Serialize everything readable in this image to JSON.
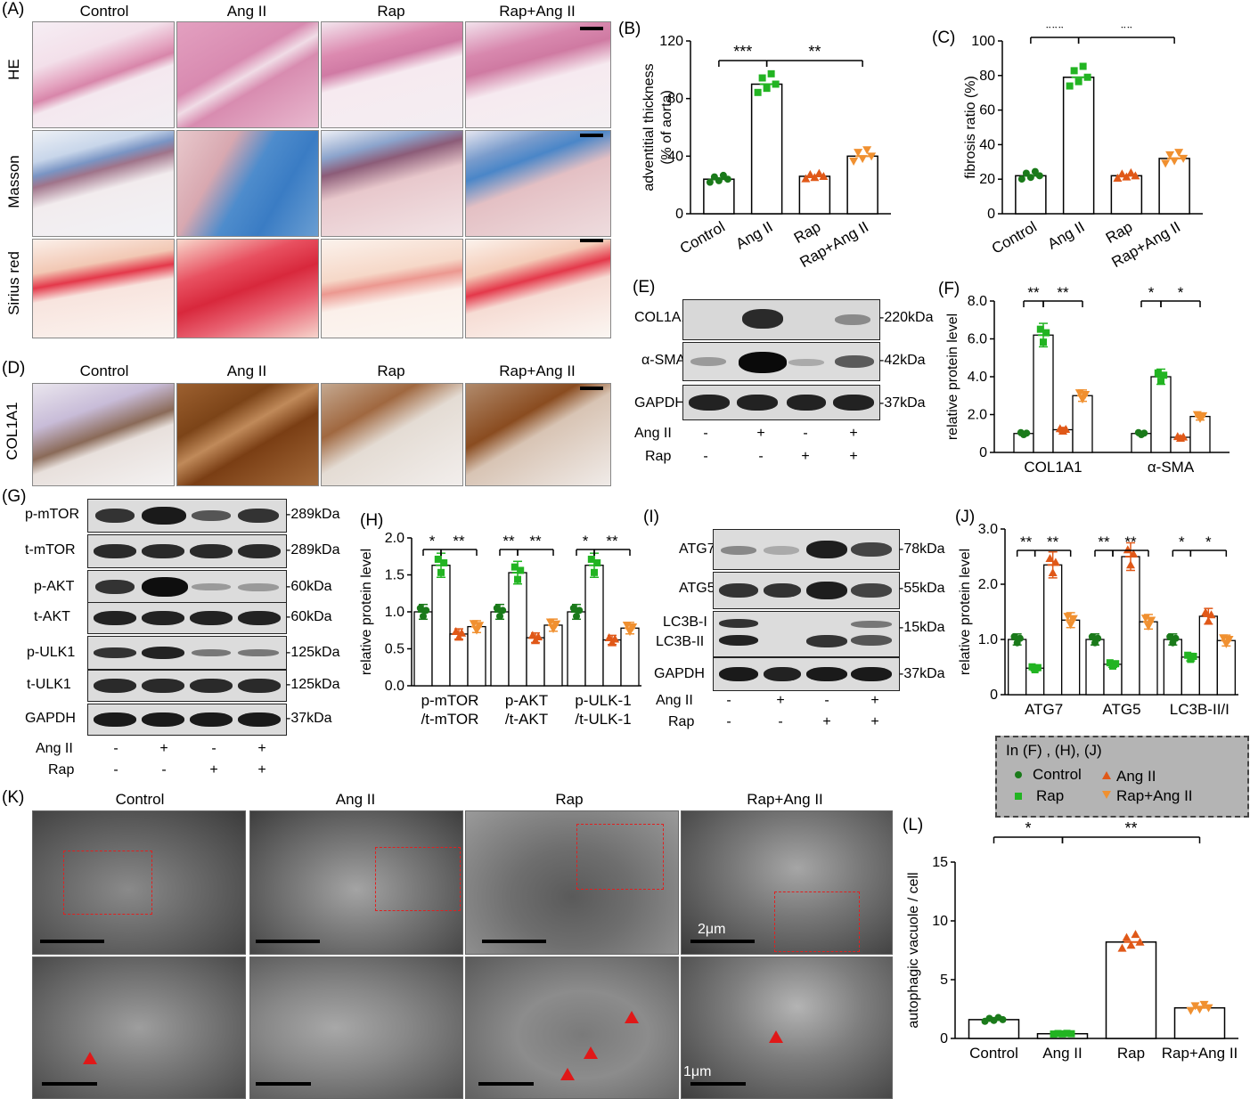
{
  "panels": {
    "a": "(A)",
    "b": "(B)",
    "c": "(C)",
    "d": "(D)",
    "e": "(E)",
    "f": "(F)",
    "g": "(G)",
    "h": "(H)",
    "i": "(I)",
    "j": "(J)",
    "k": "(K)",
    "l": "(L)"
  },
  "groups": [
    "Control",
    "Ang II",
    "Rap",
    "Rap+Ang II"
  ],
  "histo": {
    "rows": [
      "HE",
      "Masson",
      "Sirius red"
    ],
    "d_row": "COL1A1",
    "colors": {
      "he": "#d48aa8",
      "masson": "#5a8cc8",
      "sirius": "#e8485a",
      "ihc": "#9c5a2a"
    }
  },
  "blot_e": {
    "rows": [
      {
        "label": "COL1A1",
        "kda": "-220kDa"
      },
      {
        "label": "α-SMA",
        "kda": "-42kDa"
      },
      {
        "label": "GAPDH",
        "kda": "-37kDa"
      }
    ],
    "treat": [
      {
        "label": "Ang II",
        "signs": [
          "-",
          "+",
          "-",
          "+"
        ]
      },
      {
        "label": "Rap",
        "signs": [
          "-",
          "-",
          "+",
          "+"
        ]
      }
    ]
  },
  "blot_g": {
    "rows": [
      {
        "label": "p-mTOR",
        "kda": "-289kDa"
      },
      {
        "label": "t-mTOR",
        "kda": "-289kDa"
      },
      {
        "label": "p-AKT",
        "kda": "-60kDa"
      },
      {
        "label": "t-AKT",
        "kda": "-60kDa"
      },
      {
        "label": "p-ULK1",
        "kda": "-125kDa"
      },
      {
        "label": "t-ULK1",
        "kda": "-125kDa"
      },
      {
        "label": "GAPDH",
        "kda": "-37kDa"
      }
    ],
    "treat": [
      {
        "label": "Ang II",
        "signs": [
          "-",
          "+",
          "-",
          "+"
        ]
      },
      {
        "label": "Rap",
        "signs": [
          "-",
          "-",
          "+",
          "+"
        ]
      }
    ]
  },
  "blot_i": {
    "rows": [
      {
        "label": "ATG7",
        "kda": "-78kDa"
      },
      {
        "label": "ATG5",
        "kda": "-55kDa"
      },
      {
        "label": "LC3B-I",
        "kda": "-15kDa"
      },
      {
        "label": "LC3B-II",
        "kda": ""
      },
      {
        "label": "GAPDH",
        "kda": "-37kDa"
      }
    ],
    "treat": [
      {
        "label": "Ang II",
        "signs": [
          "-",
          "+",
          "-",
          "+"
        ]
      },
      {
        "label": "Rap",
        "signs": [
          "-",
          "-",
          "+",
          "+"
        ]
      }
    ]
  },
  "legend": {
    "title": "In (F) , (H), (J)",
    "items": [
      "Control",
      "Rap",
      "Ang II",
      "Rap+Ang II"
    ]
  },
  "tem": {
    "scale_top": "2μm",
    "scale_bottom": "1μm"
  },
  "chart_data": [
    {
      "id": "B",
      "type": "bar",
      "ylabel": "adventitial thickness (% of aorta)",
      "ylim": [
        0,
        120
      ],
      "yticks": [
        0,
        40,
        80,
        120
      ],
      "categories": [
        "Control",
        "Ang II",
        "Rap",
        "Rap+Ang II"
      ],
      "values": [
        24,
        90,
        26,
        40
      ],
      "sig": [
        {
          "from": 0,
          "to": 1,
          "label": "***"
        },
        {
          "from": 1,
          "to": 3,
          "label": "**"
        }
      ]
    },
    {
      "id": "C",
      "type": "bar",
      "ylabel": "fibrosis ratio (%)",
      "ylim": [
        0,
        100
      ],
      "yticks": [
        0,
        20,
        40,
        60,
        80,
        100
      ],
      "categories": [
        "Control",
        "Ang II",
        "Rap",
        "Rap+Ang II"
      ],
      "values": [
        22,
        79,
        22,
        32
      ],
      "sig": [
        {
          "from": 0,
          "to": 1,
          "label": "***"
        },
        {
          "from": 1,
          "to": 3,
          "label": "**"
        }
      ]
    },
    {
      "id": "F",
      "type": "bar",
      "ylabel": "relative protein level",
      "ylim": [
        0,
        8.0
      ],
      "yticks": [
        "0",
        "2.0",
        "4.0",
        "6.0",
        "8.0"
      ],
      "categories": [
        "COL1A1",
        "α-SMA"
      ],
      "series": [
        {
          "name": "Control",
          "values": [
            1.0,
            1.0
          ]
        },
        {
          "name": "Ang II",
          "values": [
            6.2,
            4.0
          ]
        },
        {
          "name": "Rap",
          "values": [
            1.2,
            0.8
          ]
        },
        {
          "name": "Rap+Ang II",
          "values": [
            3.0,
            1.9
          ]
        }
      ],
      "sig": [
        "**",
        "**",
        "*",
        "*"
      ]
    },
    {
      "id": "H",
      "type": "bar",
      "ylabel": "relative protein level",
      "ylim": [
        0,
        2.0
      ],
      "yticks": [
        "0.0",
        "0.5",
        "1.0",
        "1.5",
        "2.0"
      ],
      "categories": [
        "p-mTOR /t-mTOR",
        "p-AKT /t-AKT",
        "p-ULK-1 /t-ULK-1"
      ],
      "series": [
        {
          "name": "Control",
          "values": [
            1.0,
            1.0,
            1.0
          ]
        },
        {
          "name": "Ang II",
          "values": [
            1.63,
            1.53,
            1.63
          ]
        },
        {
          "name": "Rap",
          "values": [
            0.7,
            0.65,
            0.62
          ]
        },
        {
          "name": "Rap+Ang II",
          "values": [
            0.8,
            0.82,
            0.78
          ]
        }
      ],
      "sig": [
        "*",
        "**",
        "**",
        "**",
        "*",
        "**"
      ]
    },
    {
      "id": "J",
      "type": "bar",
      "ylabel": "relative protein level",
      "ylim": [
        0,
        3.0
      ],
      "yticks": [
        "0",
        "1.0",
        "2.0",
        "3.0"
      ],
      "categories": [
        "ATG7",
        "ATG5",
        "LC3B-II/I"
      ],
      "series": [
        {
          "name": "Control",
          "values": [
            1.0,
            1.0,
            1.0
          ]
        },
        {
          "name": "Ang II",
          "values": [
            0.48,
            0.55,
            0.68
          ]
        },
        {
          "name": "Rap",
          "values": [
            2.35,
            2.5,
            1.42
          ]
        },
        {
          "name": "Rap+Ang II",
          "values": [
            1.35,
            1.32,
            0.98
          ]
        }
      ],
      "sig": [
        "**",
        "**",
        "**",
        "**",
        "*",
        "*"
      ]
    },
    {
      "id": "L",
      "type": "bar",
      "ylabel": "autophagic vacuole / cell",
      "ylim": [
        0,
        15
      ],
      "yticks": [
        0,
        5,
        10,
        15
      ],
      "categories": [
        "Control",
        "Ang II",
        "Rap",
        "Rap+Ang II"
      ],
      "values": [
        1.6,
        0.4,
        8.2,
        2.6
      ],
      "sig": [
        {
          "from": 0,
          "to": 1,
          "label": "*"
        },
        {
          "from": 1,
          "to": 3,
          "label": "**"
        }
      ]
    }
  ]
}
